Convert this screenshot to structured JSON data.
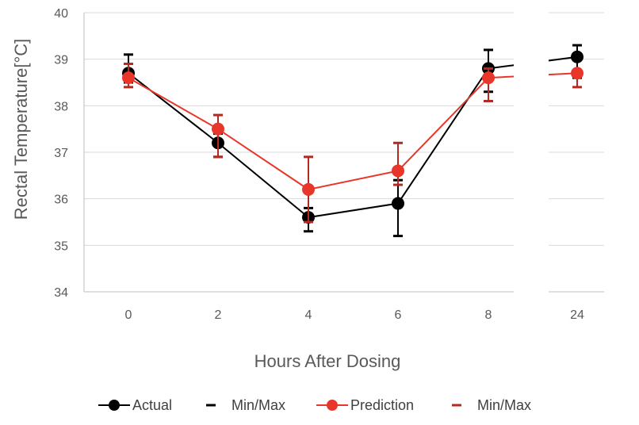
{
  "chart_data": {
    "type": "line",
    "title": "",
    "xlabel": "Hours After Dosing",
    "ylabel": "Rectal Temperature[°C]",
    "ylim": [
      34,
      40
    ],
    "yticks": [
      "34",
      "35",
      "36",
      "37",
      "38",
      "39",
      "40"
    ],
    "categories": [
      "0",
      "2",
      "4",
      "6",
      "8",
      "24"
    ],
    "axis_break_after": "8",
    "grid": true,
    "legend_position": "bottom",
    "series": [
      {
        "name": "Actual",
        "color": "#000000",
        "values": [
          38.7,
          37.2,
          35.6,
          35.9,
          38.8,
          39.05
        ],
        "min": [
          38.5,
          36.9,
          35.3,
          35.2,
          38.3,
          38.6
        ],
        "max": [
          39.1,
          37.4,
          35.8,
          36.4,
          39.2,
          39.3
        ],
        "error_name": "Min/Max"
      },
      {
        "name": "Prediction",
        "color": "#e8362a",
        "error_color": "#b22a22",
        "values": [
          38.6,
          37.5,
          36.2,
          36.6,
          38.6,
          38.7
        ],
        "min": [
          38.4,
          36.9,
          35.5,
          36.3,
          38.1,
          38.4
        ],
        "max": [
          38.9,
          37.8,
          36.9,
          37.2,
          38.8,
          38.7
        ],
        "error_name": "Min/Max"
      }
    ]
  }
}
